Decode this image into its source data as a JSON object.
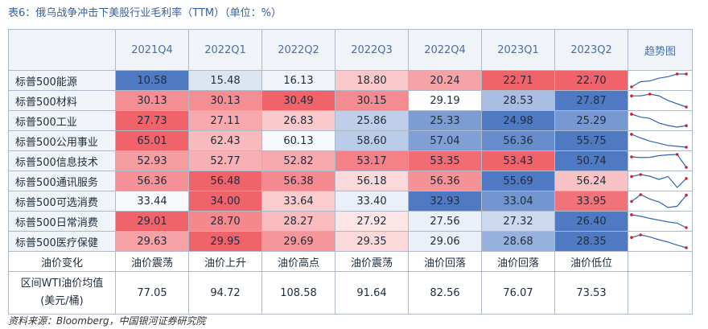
{
  "title": "表6：俄乌战争冲击下美股行业毛利率（TTM）（单位：%）",
  "header": {
    "blank": "",
    "quarters": [
      "2021Q4",
      "2022Q1",
      "2022Q2",
      "2022Q3",
      "2022Q4",
      "2023Q1",
      "2023Q2"
    ],
    "trend_label": "趋势图"
  },
  "rows": [
    {
      "name": "标普500能源",
      "values": [
        "10.58",
        "15.48",
        "16.13",
        "18.80",
        "20.24",
        "22.71",
        "22.70"
      ]
    },
    {
      "name": "标普500材料",
      "values": [
        "30.13",
        "30.13",
        "30.49",
        "30.15",
        "29.19",
        "28.53",
        "27.87"
      ]
    },
    {
      "name": "标普500工业",
      "values": [
        "27.73",
        "27.11",
        "26.83",
        "25.86",
        "25.33",
        "24.98",
        "25.29"
      ]
    },
    {
      "name": "标普500公用事业",
      "values": [
        "65.01",
        "62.43",
        "60.13",
        "58.60",
        "57.04",
        "56.36",
        "55.75"
      ]
    },
    {
      "name": "标普500信息技术",
      "values": [
        "52.93",
        "52.77",
        "52.82",
        "53.17",
        "53.35",
        "53.43",
        "50.74"
      ]
    },
    {
      "name": "标普500通讯服务",
      "values": [
        "56.36",
        "56.48",
        "56.38",
        "56.18",
        "56.36",
        "55.69",
        "56.24"
      ]
    },
    {
      "name": "标普500可选消费",
      "values": [
        "33.44",
        "34.00",
        "33.64",
        "33.40",
        "32.93",
        "33.04",
        "33.95"
      ]
    },
    {
      "name": "标普500日常消费",
      "values": [
        "29.01",
        "28.70",
        "28.27",
        "27.92",
        "27.56",
        "27.32",
        "26.40"
      ]
    },
    {
      "name": "标普500医疗保健",
      "values": [
        "29.63",
        "29.95",
        "29.69",
        "29.35",
        "29.06",
        "28.68",
        "28.35"
      ]
    }
  ],
  "oil_change": {
    "label": "油价变化",
    "values": [
      "油价震荡",
      "油价上升",
      "油价高点",
      "油价震荡",
      "油价回落",
      "油价回落",
      "油价低位"
    ]
  },
  "wti": {
    "label_line1": "区间WTI油价均值",
    "label_line2": "(美元/桶)",
    "values": [
      "77.05",
      "94.72",
      "108.58",
      "91.64",
      "82.56",
      "76.07",
      "73.53"
    ]
  },
  "source": "资料来源：Bloomberg，中国银河证券研究院",
  "colors": {
    "high": "#f0636a",
    "low": "#4f7ac3",
    "mid": "#ffffff",
    "line": "#2f64b5",
    "marker": "#d0202c"
  }
}
